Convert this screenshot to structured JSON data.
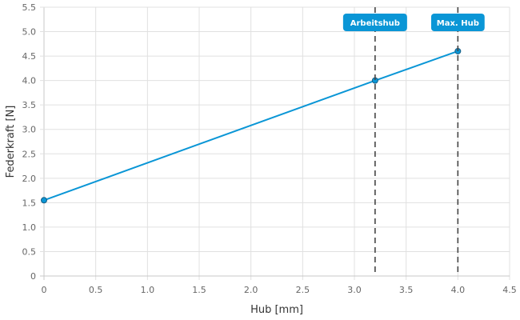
{
  "chart_data": {
    "type": "line",
    "title": "",
    "xlabel": "Hub [mm]",
    "ylabel": "Federkraft [N]",
    "xlim": [
      0,
      4.5
    ],
    "ylim": [
      0,
      5.5
    ],
    "x_ticks": [
      "0",
      "0.5",
      "1.0",
      "1.5",
      "2.0",
      "2.5",
      "3.0",
      "3.5",
      "4.0",
      "4.5"
    ],
    "y_ticks": [
      "0",
      "0.5",
      "1.0",
      "1.5",
      "2.0",
      "2.5",
      "3.0",
      "3.5",
      "4.0",
      "4.5",
      "5.0",
      "5.5"
    ],
    "grid": true,
    "series": [
      {
        "x": [
          0,
          3.2,
          4.0
        ],
        "y": [
          1.55,
          4.0,
          4.6
        ],
        "color": "#0a96d6"
      }
    ],
    "annotations": [
      {
        "label": "Arbeitshub",
        "x": 3.2,
        "style": "dashed-vertical-line"
      },
      {
        "label": "Max. Hub",
        "x": 4.0,
        "style": "dashed-vertical-line"
      }
    ],
    "colors": {
      "line": "#0a96d6",
      "label_bg": "#0a96d6",
      "marker_line": "#444444",
      "grid": "#e0e0e0"
    }
  }
}
